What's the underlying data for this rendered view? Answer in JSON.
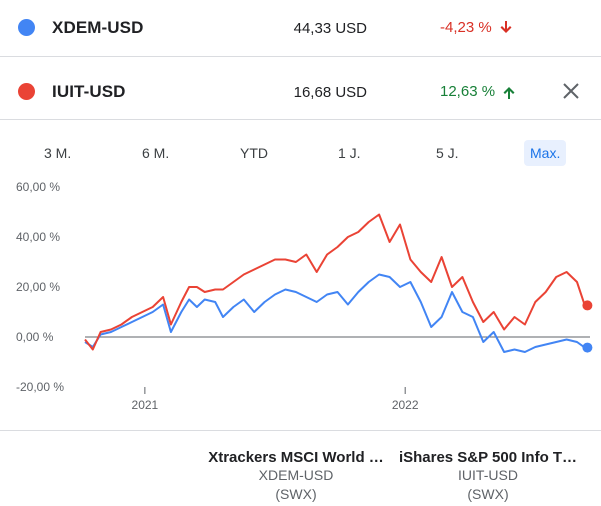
{
  "comparison": {
    "rows": [
      {
        "symbol": "XDEM-USD",
        "price": "44,33 USD",
        "change": "-4,23 %",
        "direction": "down",
        "color": "#4285f4",
        "change_color": "#d93025"
      },
      {
        "symbol": "IUIT-USD",
        "price": "16,68 USD",
        "change": "12,63 %",
        "direction": "up",
        "color": "#ea4335",
        "change_color": "#188038"
      }
    ]
  },
  "tabs": [
    {
      "label": "3 M."
    },
    {
      "label": "6 M."
    },
    {
      "label": "YTD"
    },
    {
      "label": "1 J."
    },
    {
      "label": "5 J."
    },
    {
      "label": "Max.",
      "active": true
    }
  ],
  "chart_data": {
    "type": "line",
    "y_tick_labels": [
      "60,00 %",
      "40,00 %",
      "20,00 %",
      "0,00 %",
      "-20,00 %"
    ],
    "y_ticks": [
      60,
      40,
      20,
      0,
      -20
    ],
    "ylim": [
      -20,
      60
    ],
    "x_tick_labels": [
      "2021",
      "2022"
    ],
    "x_ticks": [
      2021.0,
      2022.0
    ],
    "xlim": [
      2020.77,
      2022.71
    ],
    "grid": false,
    "series": [
      {
        "name": "XDEM-USD",
        "color": "#4285f4",
        "x": [
          2020.77,
          2020.8,
          2020.83,
          2020.87,
          2020.91,
          2020.95,
          2020.99,
          2021.03,
          2021.07,
          2021.1,
          2021.14,
          2021.17,
          2021.2,
          2021.23,
          2021.27,
          2021.3,
          2021.34,
          2021.38,
          2021.42,
          2021.46,
          2021.5,
          2021.54,
          2021.58,
          2021.62,
          2021.66,
          2021.7,
          2021.74,
          2021.78,
          2021.82,
          2021.86,
          2021.9,
          2021.94,
          2021.98,
          2022.02,
          2022.06,
          2022.1,
          2022.14,
          2022.18,
          2022.22,
          2022.26,
          2022.3,
          2022.34,
          2022.38,
          2022.42,
          2022.46,
          2022.5,
          2022.54,
          2022.58,
          2022.62,
          2022.66,
          2022.69
        ],
        "y": [
          -2,
          -4,
          1,
          2,
          4,
          6,
          8,
          10,
          13,
          2,
          10,
          15,
          12,
          15,
          14,
          8,
          12,
          15,
          10,
          14,
          17,
          19,
          18,
          16,
          14,
          17,
          18,
          13,
          18,
          22,
          25,
          24,
          20,
          22,
          14,
          4,
          8,
          18,
          10,
          8,
          -2,
          2,
          -6,
          -5,
          -6,
          -4,
          -3,
          -2,
          -1,
          -2,
          -4.23
        ],
        "end_x": 2022.7,
        "end_y": -4.23
      },
      {
        "name": "IUIT-USD",
        "color": "#ea4335",
        "x": [
          2020.77,
          2020.8,
          2020.83,
          2020.87,
          2020.91,
          2020.95,
          2020.99,
          2021.03,
          2021.07,
          2021.1,
          2021.14,
          2021.17,
          2021.2,
          2021.23,
          2021.27,
          2021.3,
          2021.34,
          2021.38,
          2021.42,
          2021.46,
          2021.5,
          2021.54,
          2021.58,
          2021.62,
          2021.66,
          2021.7,
          2021.74,
          2021.78,
          2021.82,
          2021.86,
          2021.9,
          2021.94,
          2021.98,
          2022.02,
          2022.06,
          2022.1,
          2022.14,
          2022.18,
          2022.22,
          2022.26,
          2022.3,
          2022.34,
          2022.38,
          2022.42,
          2022.46,
          2022.5,
          2022.54,
          2022.58,
          2022.62,
          2022.66,
          2022.69
        ],
        "y": [
          -1,
          -5,
          2,
          3,
          5,
          8,
          10,
          12,
          16,
          5,
          14,
          20,
          20,
          18,
          19,
          19,
          22,
          25,
          27,
          29,
          31,
          31,
          30,
          33,
          26,
          33,
          36,
          40,
          42,
          46,
          49,
          38,
          45,
          31,
          26,
          22,
          32,
          20,
          24,
          14,
          6,
          10,
          3,
          8,
          5,
          14,
          18,
          24,
          26,
          22,
          12.63
        ],
        "end_x": 2022.7,
        "end_y": 12.63
      }
    ]
  },
  "footer": {
    "funds": [
      {
        "name": "Xtrackers MSCI World …",
        "symbol": "XDEM-USD",
        "exchange": "(SWX)"
      },
      {
        "name": "iShares S&P 500 Info T…",
        "symbol": "IUIT-USD",
        "exchange": "(SWX)"
      }
    ]
  }
}
